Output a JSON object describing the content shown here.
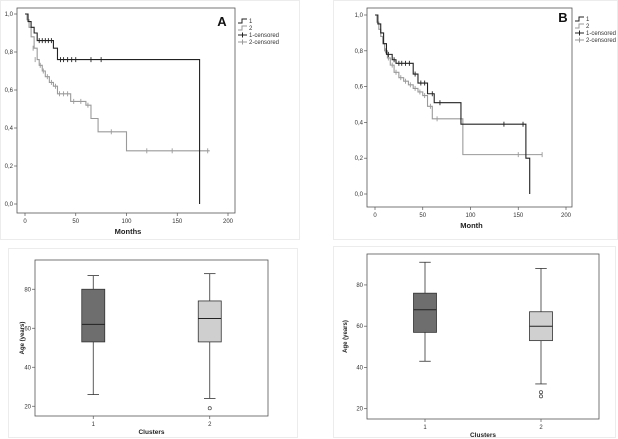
{
  "chart_data": [
    {
      "id": "A",
      "type": "line",
      "subtype": "kaplan-meier",
      "panel_letter": "A",
      "xlabel": "Months",
      "ylabel": "",
      "xlim": [
        0,
        200
      ],
      "ylim": [
        0,
        1.0
      ],
      "xticks": [
        "0",
        "50",
        "100",
        "150",
        "200"
      ],
      "yticks": [
        "0,0",
        "0,2",
        "0,4",
        "0,6",
        "0,8",
        "1,0"
      ],
      "legend": {
        "position": "top-right",
        "entries": [
          "1",
          "2",
          "1-censored",
          "2-censored"
        ]
      },
      "series": [
        {
          "name": "1",
          "color": "#222222",
          "steps": [
            [
              0,
              1.0
            ],
            [
              3,
              0.96
            ],
            [
              6,
              0.93
            ],
            [
              9,
              0.9
            ],
            [
              12,
              0.86
            ],
            [
              28,
              0.82
            ],
            [
              32,
              0.76
            ],
            [
              172,
              0.76
            ],
            [
              172,
              0.0
            ]
          ],
          "censored": [
            [
              14,
              0.86
            ],
            [
              17,
              0.86
            ],
            [
              20,
              0.86
            ],
            [
              23,
              0.86
            ],
            [
              26,
              0.86
            ],
            [
              35,
              0.76
            ],
            [
              38,
              0.76
            ],
            [
              42,
              0.76
            ],
            [
              46,
              0.76
            ],
            [
              50,
              0.76
            ],
            [
              65,
              0.76
            ],
            [
              75,
              0.76
            ]
          ]
        },
        {
          "name": "2",
          "color": "#9a9a9a",
          "steps": [
            [
              0,
              1.0
            ],
            [
              2,
              0.97
            ],
            [
              4,
              0.93
            ],
            [
              6,
              0.88
            ],
            [
              9,
              0.82
            ],
            [
              12,
              0.76
            ],
            [
              14,
              0.73
            ],
            [
              17,
              0.7
            ],
            [
              20,
              0.67
            ],
            [
              24,
              0.64
            ],
            [
              28,
              0.62
            ],
            [
              32,
              0.58
            ],
            [
              45,
              0.54
            ],
            [
              60,
              0.52
            ],
            [
              65,
              0.45
            ],
            [
              72,
              0.38
            ],
            [
              100,
              0.28
            ],
            [
              182,
              0.28
            ]
          ],
          "censored": [
            [
              8,
              0.82
            ],
            [
              10,
              0.76
            ],
            [
              15,
              0.73
            ],
            [
              18,
              0.7
            ],
            [
              22,
              0.67
            ],
            [
              26,
              0.64
            ],
            [
              30,
              0.62
            ],
            [
              34,
              0.58
            ],
            [
              38,
              0.58
            ],
            [
              42,
              0.58
            ],
            [
              48,
              0.54
            ],
            [
              55,
              0.54
            ],
            [
              62,
              0.52
            ],
            [
              85,
              0.38
            ],
            [
              120,
              0.28
            ],
            [
              145,
              0.28
            ],
            [
              180,
              0.28
            ]
          ]
        }
      ]
    },
    {
      "id": "B",
      "type": "line",
      "subtype": "kaplan-meier",
      "panel_letter": "B",
      "xlabel": "Month",
      "ylabel": "",
      "xlim": [
        0,
        200
      ],
      "ylim": [
        0,
        1.0
      ],
      "xticks": [
        "0",
        "50",
        "100",
        "150",
        "200"
      ],
      "yticks": [
        "0,0",
        "0,2",
        "0,4",
        "0,6",
        "0,8",
        "1,0"
      ],
      "legend": {
        "position": "top-right",
        "entries": [
          "1",
          "2",
          "1-censored",
          "2-censored"
        ]
      },
      "series": [
        {
          "name": "1",
          "color": "#222222",
          "steps": [
            [
              0,
              1.0
            ],
            [
              3,
              0.95
            ],
            [
              6,
              0.9
            ],
            [
              9,
              0.84
            ],
            [
              12,
              0.78
            ],
            [
              18,
              0.75
            ],
            [
              22,
              0.73
            ],
            [
              40,
              0.67
            ],
            [
              45,
              0.62
            ],
            [
              55,
              0.56
            ],
            [
              62,
              0.51
            ],
            [
              90,
              0.39
            ],
            [
              158,
              0.2
            ],
            [
              162,
              0.0
            ]
          ],
          "censored": [
            [
              14,
              0.78
            ],
            [
              20,
              0.75
            ],
            [
              25,
              0.73
            ],
            [
              28,
              0.73
            ],
            [
              32,
              0.73
            ],
            [
              36,
              0.73
            ],
            [
              42,
              0.67
            ],
            [
              48,
              0.62
            ],
            [
              52,
              0.62
            ],
            [
              60,
              0.56
            ],
            [
              68,
              0.51
            ],
            [
              135,
              0.39
            ],
            [
              155,
              0.39
            ]
          ]
        },
        {
          "name": "2",
          "color": "#9a9a9a",
          "steps": [
            [
              0,
              1.0
            ],
            [
              2,
              0.96
            ],
            [
              4,
              0.92
            ],
            [
              6,
              0.88
            ],
            [
              8,
              0.84
            ],
            [
              10,
              0.8
            ],
            [
              13,
              0.76
            ],
            [
              16,
              0.72
            ],
            [
              20,
              0.68
            ],
            [
              25,
              0.65
            ],
            [
              30,
              0.63
            ],
            [
              35,
              0.61
            ],
            [
              40,
              0.59
            ],
            [
              45,
              0.57
            ],
            [
              50,
              0.55
            ],
            [
              55,
              0.49
            ],
            [
              60,
              0.42
            ],
            [
              70,
              0.42
            ],
            [
              92,
              0.22
            ],
            [
              175,
              0.22
            ]
          ],
          "censored": [
            [
              11,
              0.8
            ],
            [
              14,
              0.76
            ],
            [
              18,
              0.72
            ],
            [
              22,
              0.68
            ],
            [
              27,
              0.65
            ],
            [
              32,
              0.63
            ],
            [
              37,
              0.61
            ],
            [
              42,
              0.59
            ],
            [
              47,
              0.57
            ],
            [
              52,
              0.55
            ],
            [
              58,
              0.49
            ],
            [
              65,
              0.42
            ],
            [
              150,
              0.22
            ],
            [
              175,
              0.22
            ]
          ]
        }
      ]
    },
    {
      "id": "C",
      "type": "boxplot",
      "xlabel": "Clusters",
      "ylabel": "Age (years)",
      "ylim": [
        15,
        95
      ],
      "yticks": [
        "20",
        "40",
        "60",
        "80"
      ],
      "categories": [
        "1",
        "2"
      ],
      "boxes": [
        {
          "category": "1",
          "color": "#6e6e6e",
          "min": 26,
          "q1": 53,
          "median": 62,
          "q3": 80,
          "max": 87,
          "outliers": []
        },
        {
          "category": "2",
          "color": "#cfcfcf",
          "min": 24,
          "q1": 53,
          "median": 65,
          "q3": 74,
          "max": 88,
          "outliers": [
            19
          ]
        }
      ]
    },
    {
      "id": "D",
      "type": "boxplot",
      "xlabel": "Clusters",
      "ylabel": "Age (years)",
      "ylim": [
        15,
        95
      ],
      "yticks": [
        "20",
        "40",
        "60",
        "80"
      ],
      "categories": [
        "1",
        "2"
      ],
      "boxes": [
        {
          "category": "1",
          "color": "#6e6e6e",
          "min": 43,
          "q1": 57,
          "median": 68,
          "q3": 76,
          "max": 91,
          "outliers": []
        },
        {
          "category": "2",
          "color": "#d0d0d0",
          "min": 32,
          "q1": 53,
          "median": 60,
          "q3": 67,
          "max": 88,
          "outliers": [
            28,
            26
          ]
        }
      ]
    }
  ]
}
